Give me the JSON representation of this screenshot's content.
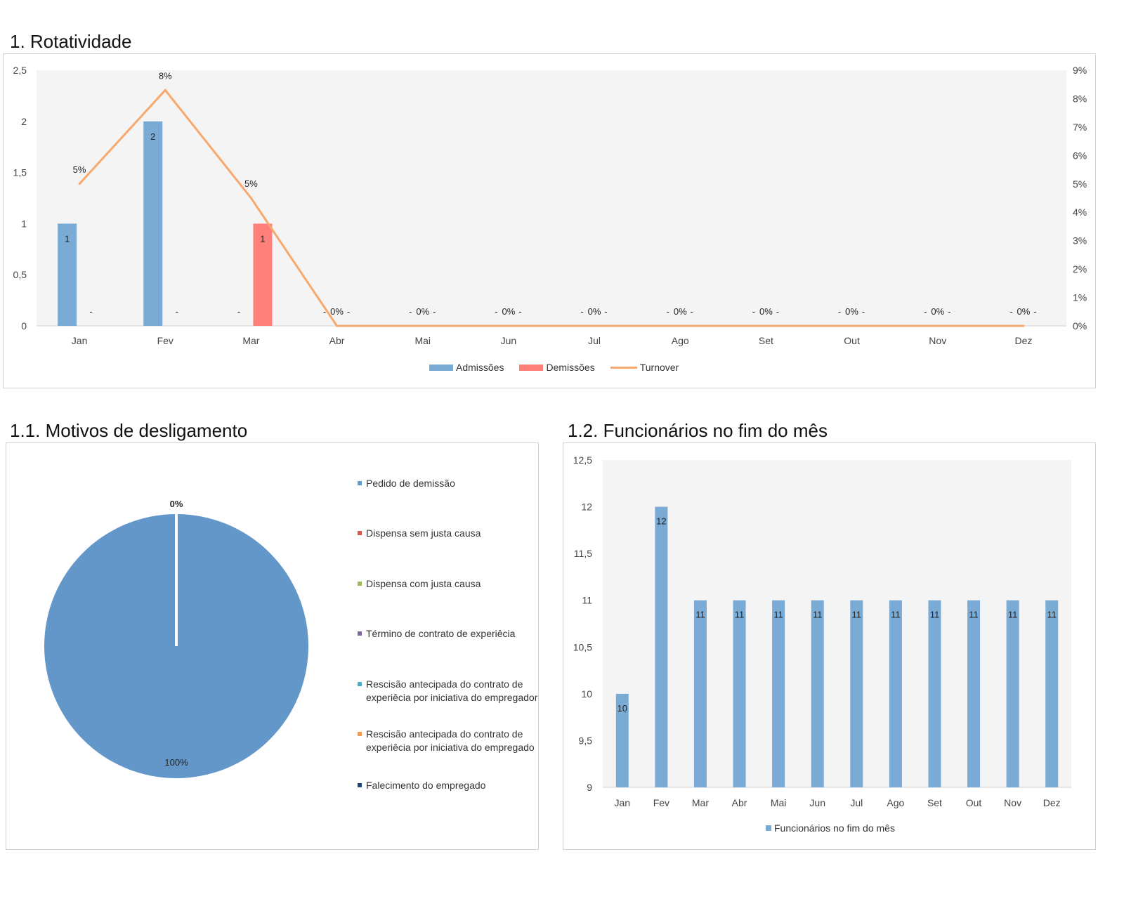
{
  "titles": {
    "rotatividade": "1. Rotatividade",
    "motivos": "1.1. Motivos de desligamento",
    "funcionarios": "1.2. Funcionários no fim do mês"
  },
  "colors": {
    "admissoes": "#7aabd5",
    "demissoes": "#ff7f7a",
    "turnover": "#f7a86c",
    "pie_main": "#6497c9",
    "funcionarios": "#7aabd5",
    "plot_bg": "#f4f4f4"
  },
  "chart_data": [
    {
      "type": "bar",
      "name": "rotatividade",
      "categories": [
        "Jan",
        "Fev",
        "Mar",
        "Abr",
        "Mai",
        "Jun",
        "Jul",
        "Ago",
        "Set",
        "Out",
        "Nov",
        "Dez"
      ],
      "series": [
        {
          "name": "Admissões",
          "values": [
            1,
            2,
            0,
            0,
            0,
            0,
            0,
            0,
            0,
            0,
            0,
            0
          ],
          "labels": [
            "1",
            "2",
            "-",
            "-",
            "-",
            "-",
            "-",
            "-",
            "-",
            "-",
            "-",
            "-"
          ]
        },
        {
          "name": "Demissões",
          "values": [
            0,
            0,
            1,
            0,
            0,
            0,
            0,
            0,
            0,
            0,
            0,
            0
          ],
          "labels": [
            "-",
            "-",
            "1",
            "-",
            "-",
            "-",
            "-",
            "-",
            "-",
            "-",
            "-",
            "-"
          ]
        },
        {
          "name": "Turnover",
          "type": "line",
          "axis": "right",
          "values": [
            0.05,
            0.083,
            0.045,
            0,
            0,
            0,
            0,
            0,
            0,
            0,
            0,
            0
          ],
          "labels": [
            "5%",
            "8%",
            "5%",
            "0%",
            "0%",
            "0%",
            "0%",
            "0%",
            "0%",
            "0%",
            "0%",
            "0%"
          ]
        }
      ],
      "y_left": {
        "min": 0,
        "max": 2.5,
        "ticks": [
          "0",
          "0,5",
          "1",
          "1,5",
          "2",
          "2,5"
        ]
      },
      "y_right": {
        "min": 0,
        "max": 0.09,
        "ticks": [
          "0%",
          "1%",
          "2%",
          "3%",
          "4%",
          "5%",
          "6%",
          "7%",
          "8%",
          "9%"
        ]
      },
      "legend": "bottom"
    },
    {
      "type": "pie",
      "name": "motivos",
      "slices": [
        {
          "label": "Pedido de demissão",
          "value": 1,
          "color": "#6497c9"
        },
        {
          "label": "Dispensa sem justa causa",
          "value": 0,
          "color": "#d9534f"
        },
        {
          "label": "Dispensa com justa causa",
          "value": 0,
          "color": "#9bbb59"
        },
        {
          "label": "Término de contrato de experiêcia",
          "value": 0,
          "color": "#8064a2"
        },
        {
          "label": "Rescisão antecipada do contrato de experiêcia por iniciativa do empregador",
          "value": 0,
          "color": "#4bacc6"
        },
        {
          "label": "Rescisão antecipada do contrato de experiêcia por iniciativa do empregado",
          "value": 0,
          "color": "#f79646"
        },
        {
          "label": "Falecimento do empregado",
          "value": 0,
          "color": "#1f497d"
        }
      ],
      "data_labels": [
        "100%",
        "0%"
      ],
      "legend": "right"
    },
    {
      "type": "bar",
      "name": "funcionarios",
      "categories": [
        "Jan",
        "Fev",
        "Mar",
        "Abr",
        "Mai",
        "Jun",
        "Jul",
        "Ago",
        "Set",
        "Out",
        "Nov",
        "Dez"
      ],
      "series": [
        {
          "name": "Funcionários no fim do mês",
          "values": [
            10,
            12,
            11,
            11,
            11,
            11,
            11,
            11,
            11,
            11,
            11,
            11
          ]
        }
      ],
      "y": {
        "min": 9,
        "max": 12.5,
        "ticks": [
          "9",
          "9,5",
          "10",
          "10,5",
          "11",
          "11,5",
          "12",
          "12,5"
        ]
      },
      "legend": "bottom"
    }
  ]
}
